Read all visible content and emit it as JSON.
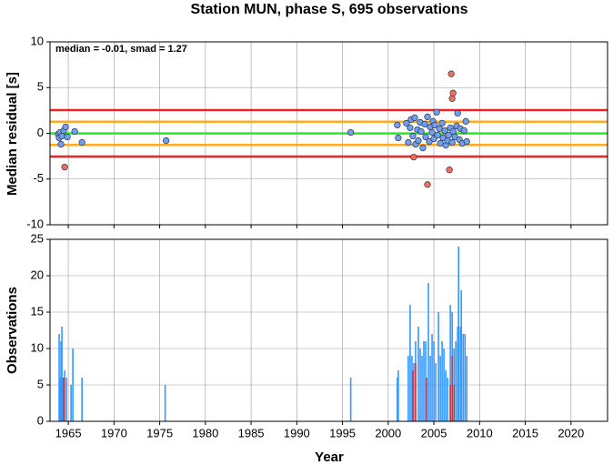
{
  "chart_data": [
    {
      "type": "scatter",
      "title": "Station MUN, phase S, 695 observations",
      "ylabel": "Median residual [s]",
      "annotation": "median = -0.01, smad = 1.27",
      "xlim": [
        1963,
        2024
      ],
      "xticks": [
        1965,
        1970,
        1975,
        1980,
        1985,
        1990,
        1995,
        2000,
        2005,
        2010,
        2015,
        2020
      ],
      "ylim": [
        -10,
        10
      ],
      "yticks": [
        -10,
        -5,
        0,
        5,
        10
      ],
      "grid": true,
      "reference_lines": [
        {
          "value": 2.54,
          "color": "#ee2222"
        },
        {
          "value": -2.54,
          "color": "#ee2222"
        },
        {
          "value": 1.27,
          "color": "#ffaa22"
        },
        {
          "value": -1.27,
          "color": "#ffaa22"
        },
        {
          "value": -0.01,
          "color": "#22ee22"
        }
      ],
      "series": [
        {
          "color": "#6fa0f0",
          "x": [
            1963.9,
            1964.0,
            1964.1,
            1964.2,
            1964.3,
            1964.5,
            1964.7,
            1964.9,
            1965.7,
            1966.5,
            1975.7,
            1995.9,
            2001.0,
            2001.1,
            2002.0,
            2002.2,
            2002.4,
            2002.5,
            2002.7,
            2002.9,
            2003.0,
            2003.2,
            2003.3,
            2003.5,
            2003.6,
            2003.8,
            2004.0,
            2004.1,
            2004.3,
            2004.5,
            2004.6,
            2004.8,
            2004.9,
            2005.0,
            2005.1,
            2005.3,
            2005.4,
            2005.6,
            2005.7,
            2005.9,
            2006.0,
            2006.2,
            2006.3,
            2006.5,
            2006.6,
            2006.8,
            2007.0,
            2007.1,
            2007.3,
            2007.5,
            2007.6,
            2007.8,
            2007.9,
            2008.1,
            2008.3,
            2008.5,
            2008.6
          ],
          "values": [
            -0.1,
            -0.5,
            0.1,
            -1.2,
            -0.3,
            0.3,
            0.7,
            -0.4,
            0.2,
            -1.0,
            -0.8,
            0.1,
            0.9,
            -0.5,
            1.1,
            -1.0,
            0.6,
            1.5,
            -0.3,
            1.7,
            -1.2,
            0.4,
            -0.8,
            1.2,
            0.2,
            -1.6,
            1.0,
            -0.4,
            1.8,
            -0.9,
            0.7,
            0.1,
            1.3,
            -0.6,
            0.9,
            2.3,
            -0.2,
            0.5,
            -1.1,
            1.1,
            -0.5,
            0.3,
            -1.3,
            -0.8,
            -0.2,
            0.6,
            -1.0,
            0.2,
            -0.4,
            0.8,
            2.2,
            -0.7,
            0.5,
            -1.1,
            0.3,
            1.3,
            -0.9
          ]
        },
        {
          "color": "#f07060",
          "x": [
            1964.6,
            2002.8,
            2004.3,
            2006.7,
            2006.9,
            2007.0,
            2007.1
          ],
          "values": [
            -3.7,
            -2.6,
            -5.6,
            -4.0,
            6.5,
            3.8,
            4.4
          ]
        }
      ]
    },
    {
      "type": "bar",
      "xlabel": "Year",
      "ylabel": "Observations",
      "xlim": [
        1963,
        2024
      ],
      "xticks": [
        1965,
        1970,
        1975,
        1980,
        1985,
        1990,
        1995,
        2000,
        2005,
        2010,
        2015,
        2020
      ],
      "ylim": [
        0,
        25
      ],
      "yticks": [
        0,
        5,
        10,
        15,
        20,
        25
      ],
      "grid": true,
      "series": [
        {
          "color": "#3399ff",
          "x": [
            1964.0,
            1964.1,
            1964.2,
            1964.3,
            1964.4,
            1964.6,
            1964.8,
            1965.3,
            1965.5,
            1966.5,
            1975.6,
            1995.9,
            2001.0,
            2001.1,
            2002.2,
            2002.4,
            2002.6,
            2002.8,
            2003.0,
            2003.3,
            2003.5,
            2003.7,
            2003.9,
            2004.1,
            2004.4,
            2004.6,
            2004.8,
            2005.0,
            2005.2,
            2005.5,
            2005.7,
            2005.9,
            2006.1,
            2006.3,
            2006.5,
            2006.8,
            2007.0,
            2007.2,
            2007.4,
            2007.6,
            2007.7,
            2007.9,
            2008.0,
            2008.2,
            2008.4,
            2008.6
          ],
          "values": [
            12,
            6,
            11,
            13,
            6,
            7,
            6,
            5,
            10,
            6,
            5,
            6,
            6,
            7,
            9,
            16,
            9,
            8,
            11,
            13,
            10,
            9,
            11,
            11,
            19,
            9,
            12,
            11,
            8,
            15,
            9,
            11,
            10,
            7,
            6,
            16,
            15,
            10,
            11,
            13,
            24,
            13,
            18,
            12,
            12,
            9
          ]
        },
        {
          "color": "#e03030",
          "x": [
            1964.5,
            2002.7,
            2003.0,
            2004.2,
            2006.8,
            2007.0,
            2007.2
          ],
          "values": [
            6,
            7,
            8,
            6,
            5,
            9,
            5
          ]
        }
      ]
    }
  ]
}
